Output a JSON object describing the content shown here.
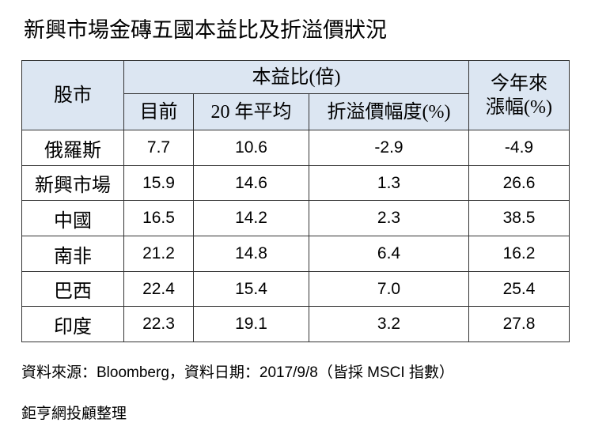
{
  "title": "新興市場金磚五國本益比及折溢價狀況",
  "table": {
    "header": {
      "market": "股市",
      "pe": "本益比(倍)",
      "ytd": [
        "今年來",
        "漲幅(%)"
      ],
      "sub": [
        "目前",
        "20 年平均",
        "折溢價幅度(%)"
      ]
    },
    "rows": [
      [
        "俄羅斯",
        "7.7",
        "10.6",
        "-2.9",
        "-4.9"
      ],
      [
        "新興市場",
        "15.9",
        "14.6",
        "1.3",
        "26.6"
      ],
      [
        "中國",
        "16.5",
        "14.2",
        "2.3",
        "38.5"
      ],
      [
        "南非",
        "21.2",
        "14.8",
        "6.4",
        "16.2"
      ],
      [
        "巴西",
        "22.4",
        "15.4",
        "7.0",
        "25.4"
      ],
      [
        "印度",
        "22.3",
        "19.1",
        "3.2",
        "27.8"
      ]
    ]
  },
  "footer": {
    "source": "資料來源：Bloomberg，資料日期：2017/9/8（皆採 MSCI 指數）",
    "credit": "鉅亨網投顧整理"
  }
}
